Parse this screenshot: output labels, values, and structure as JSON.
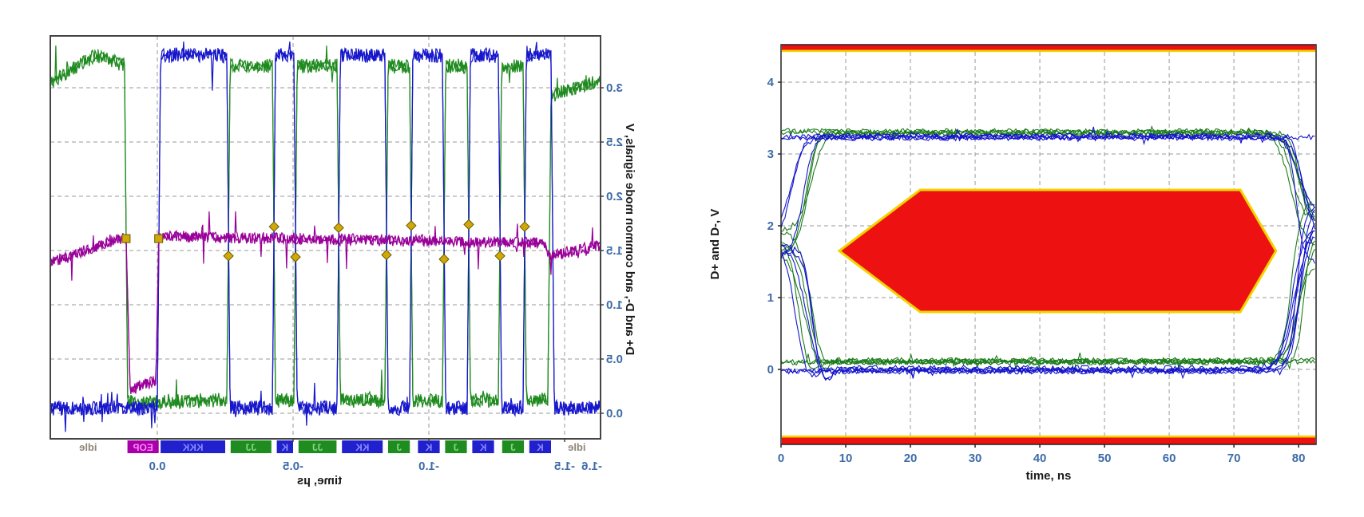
{
  "chart_data": [
    {
      "type": "line",
      "name": "usb-packet-waveform",
      "mirrored_horizontally": true,
      "title": "",
      "xlabel": "time, µs",
      "ylabel": "D+ and D-, and common mode signals, V",
      "xlim": [
        -1.63,
        0.39
      ],
      "ylim": [
        -0.24,
        3.47
      ],
      "x_ticks": [
        0.0,
        -0.5,
        -1.0,
        -1.5
      ],
      "x_tick_labels": [
        "0.0",
        "-0.5",
        "-1.0",
        "-1.5"
      ],
      "x_corner_tick": {
        "value": -1.6,
        "label": "-1.6"
      },
      "y_ticks": [
        0.0,
        0.5,
        1.0,
        1.5,
        2.0,
        2.5,
        3.0
      ],
      "y_tick_labels": [
        "0.0",
        "0.5",
        "1.0",
        "1.5",
        "2.0",
        "2.5",
        "3.0"
      ],
      "grid": "dashed",
      "colors": {
        "d_plus": "#1e8a1e",
        "d_minus": "#1616cc",
        "common_mode": "#990099",
        "marker_fill": "#cfa90a",
        "marker_stroke": "#6b5900",
        "frame": "#444444",
        "grid": "#9a9a9a",
        "seg_J_bg": "#1e8c1e",
        "seg_J_text": "#86d686",
        "seg_K_bg": "#2020cc",
        "seg_K_text": "#8a8aff",
        "seg_EOP_bg": "#a800a8",
        "seg_EOP_text": "#ff85ff",
        "idle_text": "#8f8678",
        "tick_text": "#3d6ba8"
      },
      "segments": [
        {
          "label": "idle",
          "type": "idle",
          "t0": -1.63,
          "t1": -1.46
        },
        {
          "label": "K",
          "type": "K",
          "t0": -1.45,
          "t1": -1.37
        },
        {
          "label": "J",
          "type": "J",
          "t0": -1.35,
          "t1": -1.27
        },
        {
          "label": "K",
          "type": "K",
          "t0": -1.24,
          "t1": -1.16
        },
        {
          "label": "J",
          "type": "J",
          "t0": -1.14,
          "t1": -1.06
        },
        {
          "label": "K",
          "type": "K",
          "t0": -1.04,
          "t1": -0.96
        },
        {
          "label": "J",
          "type": "J",
          "t0": -0.93,
          "t1": -0.85
        },
        {
          "label": "KK",
          "type": "K",
          "t0": -0.83,
          "t1": -0.68
        },
        {
          "label": "JJ",
          "type": "J",
          "t0": -0.66,
          "t1": -0.52
        },
        {
          "label": "K",
          "type": "K",
          "t0": -0.5,
          "t1": -0.44
        },
        {
          "label": "JJ",
          "type": "J",
          "t0": -0.42,
          "t1": -0.27
        },
        {
          "label": "KKK",
          "type": "K",
          "t0": -0.25,
          "t1": -0.012
        },
        {
          "label": "EOP",
          "type": "EOP",
          "t0": -0.005,
          "t1": 0.11
        },
        {
          "label": "idle",
          "type": "idle",
          "t0": 0.12,
          "t1": 0.39
        }
      ],
      "series": [
        {
          "name": "D+",
          "color": "#1e8a1e",
          "noise": 0.07,
          "levels": [
            [
              -1.632,
              3.08
            ],
            [
              -1.45,
              2.92
            ],
            [
              -1.438,
              0.12
            ],
            [
              -1.359,
              0.12
            ],
            [
              -1.347,
              3.2
            ],
            [
              -1.268,
              3.2
            ],
            [
              -1.256,
              0.12
            ],
            [
              -1.153,
              0.12
            ],
            [
              -1.141,
              3.2
            ],
            [
              -1.062,
              3.2
            ],
            [
              -1.05,
              0.12
            ],
            [
              -0.941,
              0.12
            ],
            [
              -0.929,
              3.2
            ],
            [
              -0.85,
              3.2
            ],
            [
              -0.838,
              0.12
            ],
            [
              -0.674,
              0.12
            ],
            [
              -0.662,
              3.2
            ],
            [
              -0.515,
              3.2
            ],
            [
              -0.503,
              0.12
            ],
            [
              -0.435,
              0.12
            ],
            [
              -0.424,
              3.2
            ],
            [
              -0.268,
              3.2
            ],
            [
              -0.256,
              0.12
            ],
            [
              0.109,
              0.1
            ],
            [
              0.121,
              3.22
            ],
            [
              0.226,
              3.3
            ],
            [
              0.394,
              3.05
            ]
          ]
        },
        {
          "name": "D-",
          "color": "#1616cc",
          "noise": 0.07,
          "levels": [
            [
              -1.632,
              0.05
            ],
            [
              -1.462,
              0.05
            ],
            [
              -1.45,
              3.3
            ],
            [
              -1.359,
              3.3
            ],
            [
              -1.347,
              0.05
            ],
            [
              -1.268,
              0.05
            ],
            [
              -1.256,
              3.3
            ],
            [
              -1.153,
              3.3
            ],
            [
              -1.141,
              0.05
            ],
            [
              -1.062,
              0.05
            ],
            [
              -1.05,
              3.3
            ],
            [
              -0.941,
              3.3
            ],
            [
              -0.929,
              0.05
            ],
            [
              -0.85,
              0.05
            ],
            [
              -0.838,
              3.3
            ],
            [
              -0.674,
              3.3
            ],
            [
              -0.662,
              0.05
            ],
            [
              -0.515,
              0.05
            ],
            [
              -0.503,
              3.3
            ],
            [
              -0.435,
              3.3
            ],
            [
              -0.424,
              0.05
            ],
            [
              -0.268,
              0.05
            ],
            [
              -0.256,
              3.3
            ],
            [
              -0.012,
              3.3
            ],
            [
              0.0,
              0.05
            ],
            [
              0.394,
              0.05
            ]
          ]
        },
        {
          "name": "common mode",
          "color": "#990099",
          "noise": 0.055,
          "levels": [
            [
              -1.632,
              1.55
            ],
            [
              -1.45,
              1.45
            ],
            [
              -1.42,
              1.57
            ],
            [
              -0.02,
              1.63
            ],
            [
              -0.005,
              1.62
            ],
            [
              0.005,
              0.3
            ],
            [
              0.1,
              0.22
            ],
            [
              0.115,
              1.6
            ],
            [
              0.13,
              1.62
            ],
            [
              0.394,
              1.38
            ]
          ]
        }
      ],
      "markers": {
        "squares": [
          [
            -0.005,
            1.61
          ],
          [
            0.115,
            1.61
          ]
        ],
        "diamonds": [
          [
            -1.353,
            1.72
          ],
          [
            -1.262,
            1.45
          ],
          [
            -1.147,
            1.74
          ],
          [
            -1.056,
            1.42
          ],
          [
            -0.935,
            1.73
          ],
          [
            -0.844,
            1.46
          ],
          [
            -0.668,
            1.71
          ],
          [
            -0.509,
            1.44
          ],
          [
            -0.43,
            1.72
          ],
          [
            -0.262,
            1.45
          ]
        ]
      }
    },
    {
      "type": "line",
      "name": "usb-eye-diagram",
      "title": "",
      "xlabel": "time, ns",
      "ylabel": "D+ and D-, V",
      "xlim": [
        0,
        82.7
      ],
      "ylim": [
        -1.04,
        4.52
      ],
      "x_ticks": [
        0,
        10,
        20,
        30,
        40,
        50,
        60,
        70,
        80
      ],
      "x_tick_labels": [
        "0",
        "10",
        "20",
        "30",
        "40",
        "50",
        "60",
        "70",
        "80"
      ],
      "y_ticks": [
        0,
        1,
        2,
        3,
        4
      ],
      "y_tick_labels": [
        "0",
        "1",
        "2",
        "3",
        "4"
      ],
      "grid": "dashed",
      "colors": {
        "trace_green": "#1b7c1b",
        "trace_blue": "#1414cc",
        "mask_fill": "#ee1111",
        "mask_border": "#f0d400",
        "frame": "#222222",
        "grid": "#9a9a9a",
        "tick_text": "#3d6ba8"
      },
      "mask": {
        "hexagon_t_v": [
          [
            9,
            1.65
          ],
          [
            21.5,
            2.5
          ],
          [
            71,
            2.5
          ],
          [
            76.5,
            1.65
          ],
          [
            71,
            0.8
          ],
          [
            21.5,
            0.8
          ]
        ],
        "top_bar_v": [
          4.45,
          4.52
        ],
        "top_bar_border_v": [
          4.42,
          4.45
        ],
        "bottom_bar_v": [
          -1.04,
          -0.95
        ],
        "bottom_bar_border_v": [
          -0.95,
          -0.92
        ]
      },
      "traces": {
        "top_level_green": 3.3,
        "top_level_blue": 3.24,
        "bottom_level_green": 0.12,
        "bottom_level_blue": 0.0,
        "crossover_voltage": 1.7,
        "left_transition_ns": [
          1.0,
          4.8
        ],
        "right_transition_ns": [
          78.8,
          81.2
        ],
        "traces_per_color": 11
      }
    }
  ]
}
